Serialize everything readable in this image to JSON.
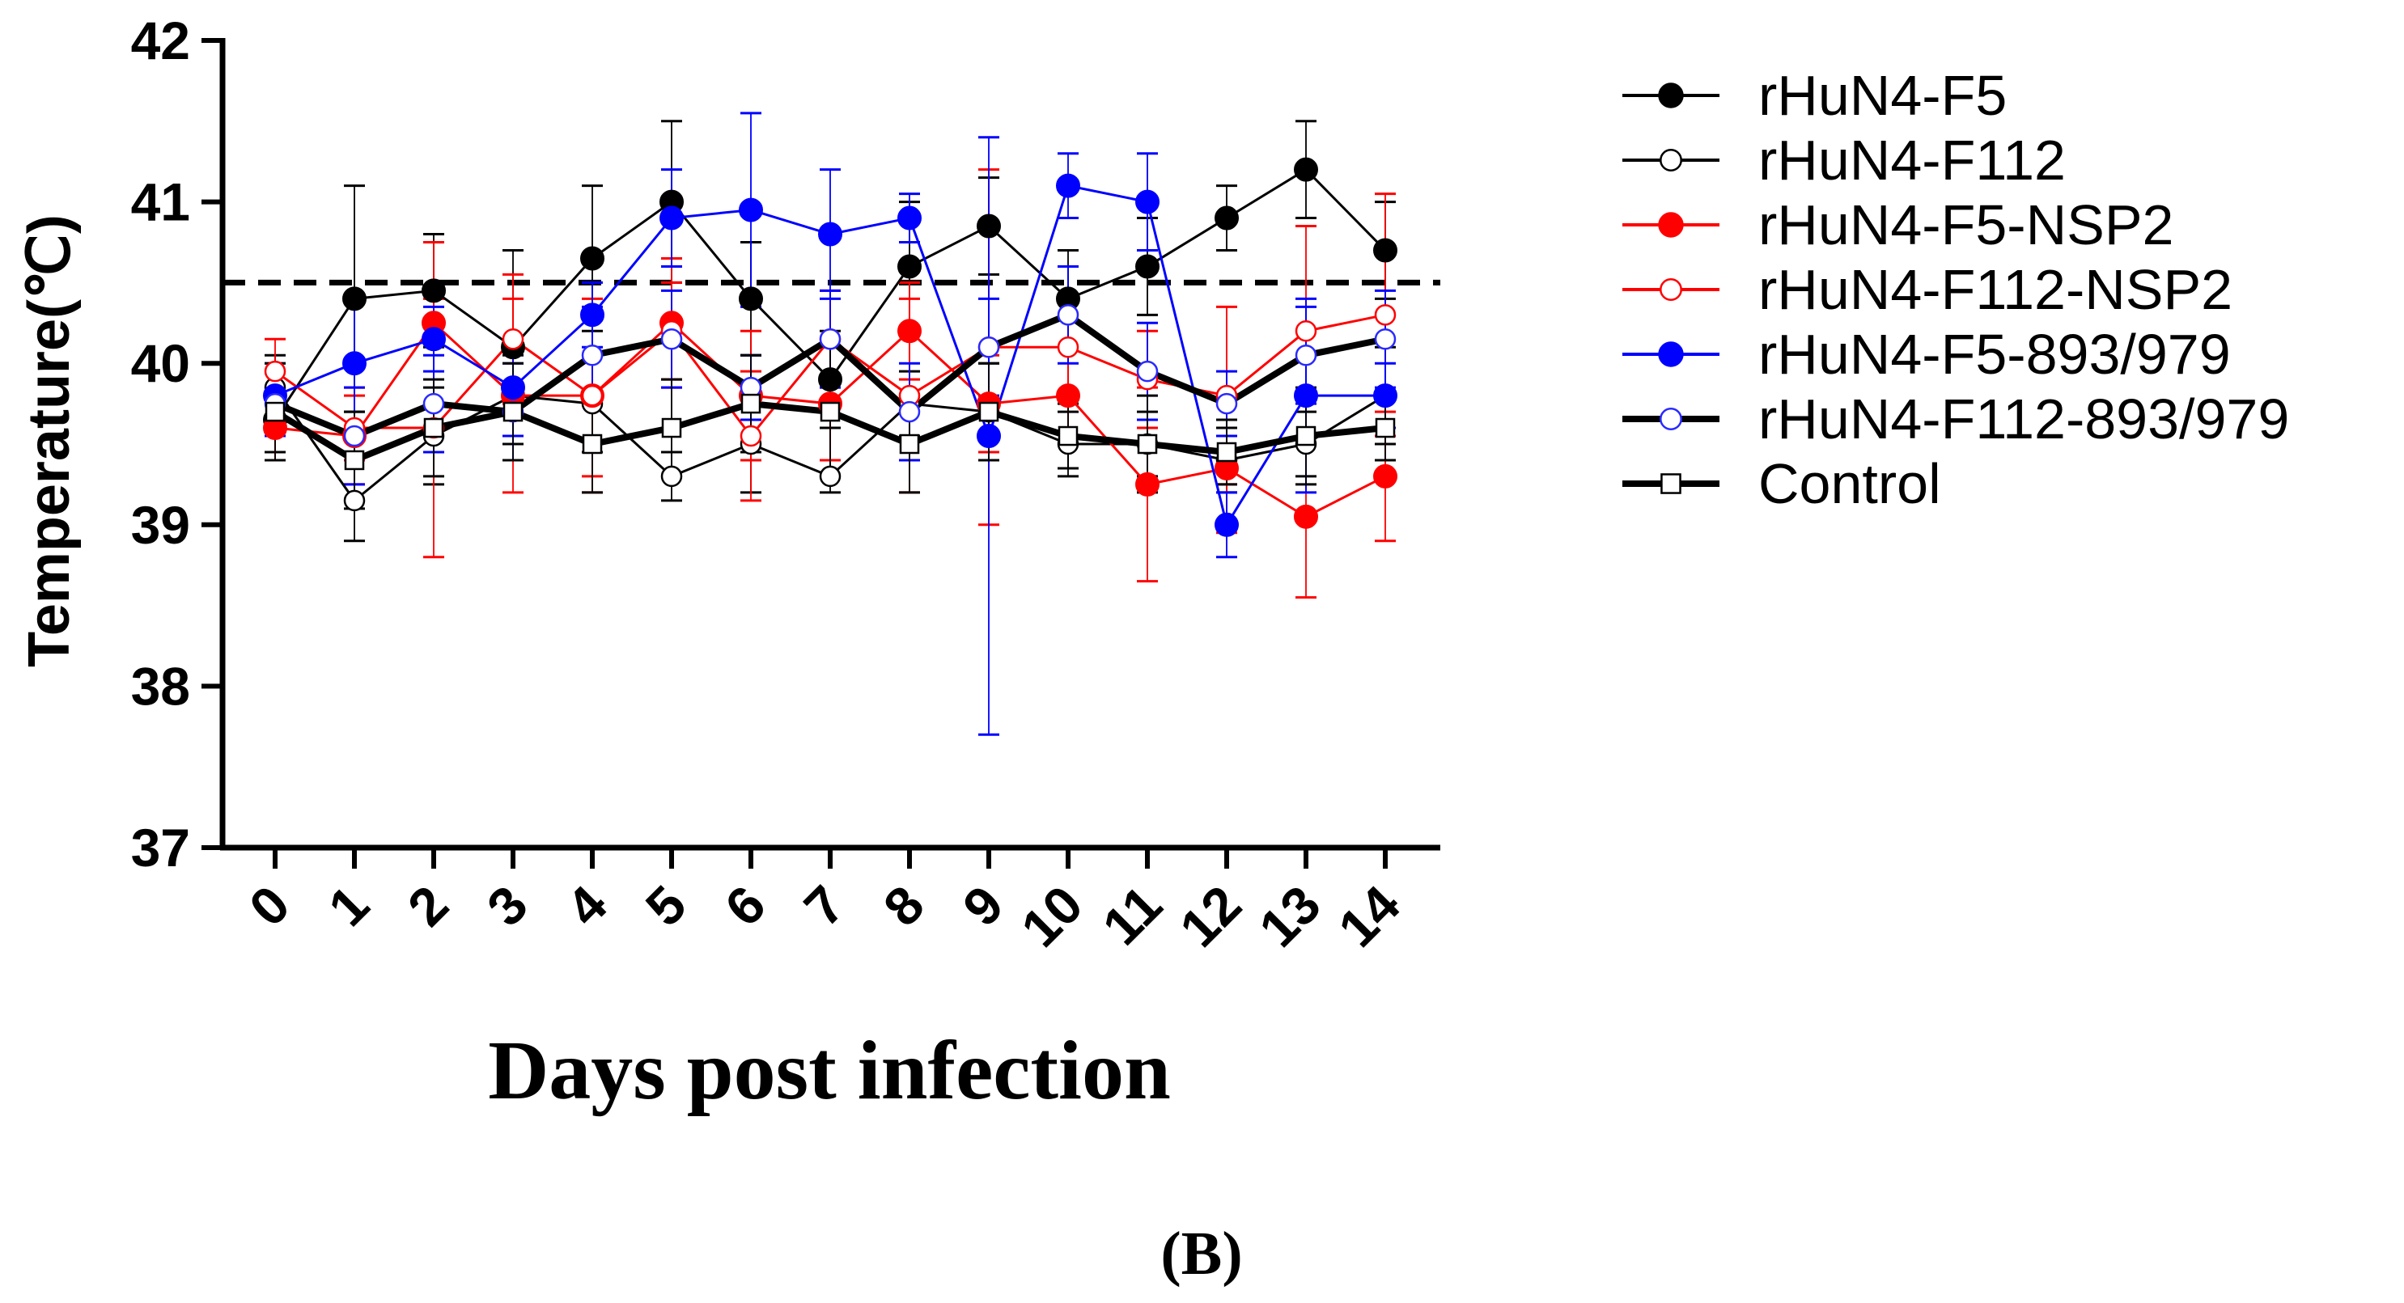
{
  "chart_data": {
    "type": "line",
    "title": "",
    "xlabel": "Days post infection",
    "ylabel": "Temperature(℃)",
    "caption": "(B)",
    "x": [
      "0",
      "1",
      "2",
      "3",
      "4",
      "5",
      "6",
      "7",
      "8",
      "9",
      "10",
      "11",
      "12",
      "13",
      "14"
    ],
    "ylim": [
      37,
      42
    ],
    "yticks": [
      "37",
      "38",
      "39",
      "40",
      "41",
      "42"
    ],
    "threshold": 40.5,
    "legend_position": "right",
    "series": [
      {
        "name": "rHuN4-F5",
        "color": "#000000",
        "marker": "filled-circle",
        "line_weight": "thin",
        "values": [
          39.65,
          40.4,
          40.45,
          40.1,
          40.65,
          41.0,
          40.4,
          39.9,
          40.6,
          40.85,
          40.4,
          40.6,
          40.9,
          41.2,
          40.7
        ],
        "err": [
          0.2,
          0.7,
          0.35,
          0.6,
          0.45,
          0.5,
          0.35,
          0.3,
          0.4,
          0.3,
          0.3,
          0.3,
          0.2,
          0.3,
          0.3
        ]
      },
      {
        "name": "rHuN4-F112",
        "color": "#000000",
        "marker": "open-circle",
        "line_weight": "thin",
        "values": [
          39.85,
          39.15,
          39.55,
          39.8,
          39.75,
          39.3,
          39.5,
          39.3,
          39.75,
          39.7,
          39.5,
          39.5,
          39.4,
          39.5,
          39.8
        ],
        "err": [
          0.2,
          0.25,
          0.3,
          0.25,
          0.3,
          0.15,
          0.3,
          0.1,
          0.2,
          0.3,
          0.2,
          0.2,
          0.2,
          0.2,
          0.3
        ]
      },
      {
        "name": "rHuN4-F5-NSP2",
        "color": "#ff0000",
        "marker": "filled-circle",
        "line_weight": "thin",
        "values": [
          39.6,
          39.55,
          40.25,
          39.8,
          39.8,
          40.25,
          39.8,
          39.75,
          40.2,
          39.75,
          39.8,
          39.25,
          39.35,
          39.05,
          39.3
        ],
        "err": [
          0.2,
          0.3,
          0.5,
          0.6,
          0.6,
          0.4,
          0.4,
          0.35,
          0.3,
          0.3,
          0.3,
          0.6,
          0.4,
          0.5,
          0.4
        ]
      },
      {
        "name": "rHuN4-F112-NSP2",
        "color": "#ff0000",
        "marker": "open-circle",
        "line_weight": "thin",
        "values": [
          39.95,
          39.6,
          39.6,
          40.15,
          39.8,
          40.2,
          39.55,
          40.15,
          39.8,
          40.1,
          40.1,
          39.9,
          39.8,
          40.2,
          40.3
        ],
        "err": [
          0.2,
          0.2,
          0.8,
          0.4,
          0.5,
          0.3,
          0.4,
          0.3,
          0.6,
          1.1,
          0.3,
          0.3,
          0.55,
          0.65,
          0.75
        ]
      },
      {
        "name": "rHuN4-F5-893/979",
        "color": "#0000ff",
        "marker": "filled-circle",
        "line_weight": "thin",
        "values": [
          39.8,
          40.0,
          40.15,
          39.85,
          40.3,
          40.9,
          40.95,
          40.8,
          40.9,
          39.55,
          41.1,
          41.0,
          39.0,
          39.8,
          39.8
        ],
        "err": [
          0.2,
          0.4,
          0.2,
          0.3,
          0.2,
          0.3,
          0.6,
          0.4,
          0.15,
          1.85,
          0.2,
          0.3,
          0.2,
          0.6,
          0.2
        ]
      },
      {
        "name": "rHuN4-F112-893/979",
        "color": "#000000",
        "marker": "open-circle-blue",
        "line_weight": "thick",
        "values": [
          39.75,
          39.55,
          39.75,
          39.7,
          40.05,
          40.15,
          39.85,
          40.15,
          39.7,
          40.1,
          40.3,
          39.95,
          39.75,
          40.05,
          40.15
        ],
        "err": [
          0.2,
          0.3,
          0.3,
          0.3,
          0.3,
          0.3,
          0.2,
          0.3,
          0.3,
          0.3,
          0.3,
          0.3,
          0.2,
          0.3,
          0.3
        ]
      },
      {
        "name": "Control",
        "color": "#000000",
        "marker": "open-square",
        "line_weight": "thick",
        "values": [
          39.7,
          39.4,
          39.6,
          39.7,
          39.5,
          39.6,
          39.75,
          39.7,
          39.5,
          39.7,
          39.55,
          39.5,
          39.45,
          39.55,
          39.6
        ],
        "err": [
          0.3,
          0.3,
          0.3,
          0.3,
          0.3,
          0.3,
          0.3,
          0.4,
          0.3,
          0.3,
          0.2,
          0.3,
          0.2,
          0.3,
          0.2
        ]
      }
    ]
  }
}
